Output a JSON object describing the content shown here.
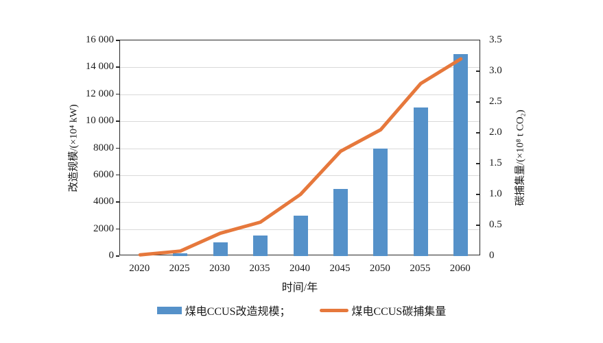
{
  "chart_data": {
    "type": "bar",
    "categories": [
      "2020",
      "2025",
      "2030",
      "2035",
      "2040",
      "2045",
      "2050",
      "2055",
      "2060"
    ],
    "series": [
      {
        "name": "煤电CCUS改造规模",
        "kind": "bar",
        "axis": "left",
        "values": [
          0,
          200,
          1000,
          1500,
          3000,
          5000,
          8000,
          11000,
          15000
        ]
      },
      {
        "name": "煤电CCUS碳捕集量",
        "kind": "line",
        "axis": "right",
        "values": [
          0.02,
          0.08,
          0.37,
          0.55,
          1.0,
          1.7,
          2.05,
          2.8,
          3.2
        ]
      }
    ],
    "xlabel": "时间/年",
    "ylabel_left": "改造规模/(×10⁴ kW)",
    "ylabel_right": "碳捕集量/(×10⁸ t CO₂)",
    "ylim_left": [
      0,
      16000
    ],
    "ylim_right": [
      0,
      3.5
    ],
    "yticks_left": [
      "0",
      "2000",
      "4000",
      "6000",
      "8000",
      "10 000",
      "12 000",
      "14 000",
      "16 000"
    ],
    "yticks_right": [
      "0",
      "0.5",
      "1.0",
      "1.5",
      "2.0",
      "2.5",
      "3.0",
      "3.5"
    ],
    "grid": true,
    "legend_position": "bottom"
  },
  "legend": {
    "bar_label": "煤电CCUS改造规模；",
    "line_label": "煤电CCUS碳捕集量"
  },
  "colors": {
    "bar": "#5591c9",
    "line": "#e6783c",
    "grid": "#d9d9d9",
    "spine": "#262626",
    "text": "#1a1a1a"
  }
}
